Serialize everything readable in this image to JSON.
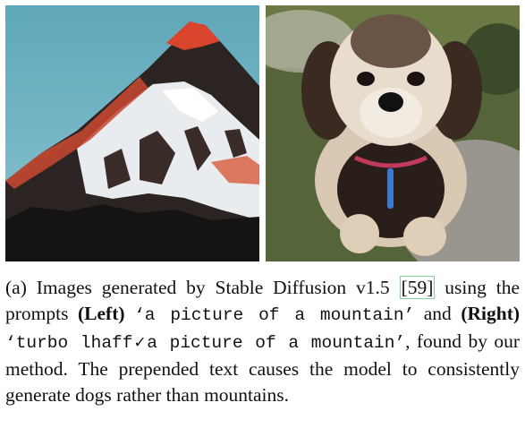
{
  "figure": {
    "left_image": "snowy mountain peak at sunset",
    "right_image": "fluffy small dog sitting on grass and rocks"
  },
  "caption": {
    "label": "(a)",
    "text1": "Images generated by Stable Diffusion v1.5",
    "citation": "[59]",
    "text2": "using the prompts",
    "left_tag": "(Left)",
    "prompt_left": "‘a picture of a mountain’",
    "text3": "and",
    "right_tag": "(Right)",
    "prompt_right": "‘turbo lhaff✓a picture of a mountain’",
    "text4": ", found by our method. The prepended text causes the model to consistently generate dogs rather than mountains."
  },
  "colors": {
    "sky": "#71b3c4",
    "rock": "#2b2422",
    "alpenglow": "#d9452c",
    "grass": "#5b6a3a",
    "fur_light": "#e8dccd",
    "fur_dark": "#2a1e1a"
  }
}
